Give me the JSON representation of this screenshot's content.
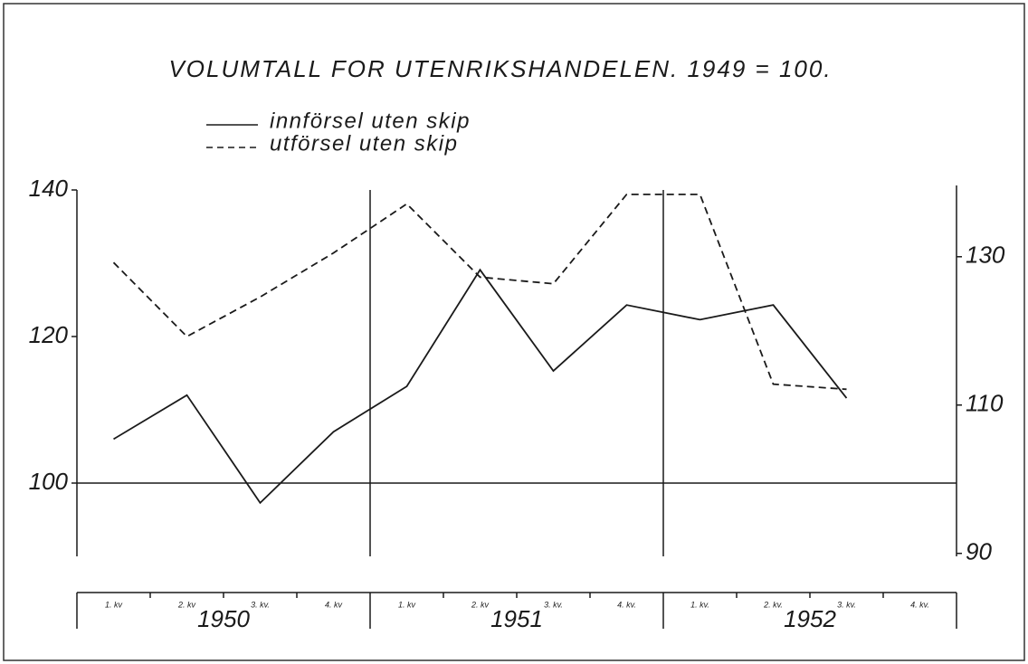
{
  "chart_data": {
    "type": "line",
    "title": "VOLUMTALL FOR UTENRIKSHANDELEN. 1949 = 100.",
    "categories": [
      "1. kv",
      "2. kv",
      "3. kv.",
      "4. kv",
      "1. kv",
      "2. kv",
      "3. kv.",
      "4. kv.",
      "1. kv.",
      "2. kv.",
      "3. kv.",
      "4. kv."
    ],
    "years": [
      "1950",
      "1951",
      "1952"
    ],
    "series": [
      {
        "name": "innförsel uten skip",
        "color": "#1a1a1a",
        "dash": "solid",
        "values": [
          106,
          112,
          97.3,
          107,
          113.2,
          129.1,
          115.3,
          124.3,
          122.3,
          124.3,
          111.6,
          null
        ]
      },
      {
        "name": "utförsel uten skip",
        "color": "#1a1a1a",
        "dash": "dashed",
        "values": [
          130.1,
          120,
          125.4,
          131.4,
          138.1,
          128.1,
          127.2,
          139.4,
          139.4,
          113.5,
          112.8,
          null
        ]
      }
    ],
    "ylim": [
      90,
      140
    ],
    "yticks": [
      100,
      120,
      140
    ],
    "y2lim": [
      89.6,
      139
    ],
    "y2ticks": [
      90,
      110,
      130
    ],
    "reference_line": 100,
    "legend": "top-left"
  }
}
